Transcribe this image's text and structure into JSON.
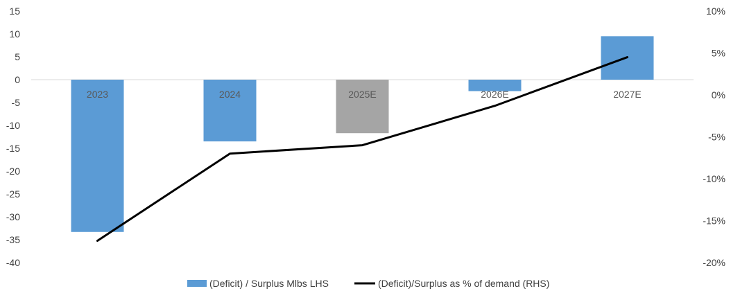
{
  "chart_data": {
    "type": "bar",
    "categories": [
      "2023",
      "2024",
      "2025E",
      "2026E",
      "2027E"
    ],
    "series": [
      {
        "name": "(Deficit) / Surplus Mlbs LHS",
        "type": "bar",
        "axis": "left",
        "values": [
          -33.3,
          -13.5,
          -11.7,
          -2.5,
          9.5
        ],
        "colors": [
          "#5b9bd5",
          "#5b9bd5",
          "#a5a5a5",
          "#5b9bd5",
          "#5b9bd5"
        ]
      },
      {
        "name": "(Deficit)/Surplus as % of demand (RHS)",
        "type": "line",
        "axis": "right",
        "values": [
          -17.4,
          -7.0,
          -6.0,
          -1.3,
          4.5
        ],
        "color": "#000000"
      }
    ],
    "left_axis": {
      "ylim": [
        -40,
        15
      ],
      "ticks": [
        "15",
        "10",
        "5",
        "0",
        "-5",
        "-10",
        "-15",
        "-20",
        "-25",
        "-30",
        "-35",
        "-40"
      ]
    },
    "right_axis": {
      "ylim": [
        -20,
        10
      ],
      "ticks": [
        "10%",
        "5%",
        "0%",
        "-5%",
        "-10%",
        "-15%",
        "-20%"
      ]
    },
    "legend_position": "bottom",
    "grid": false
  }
}
